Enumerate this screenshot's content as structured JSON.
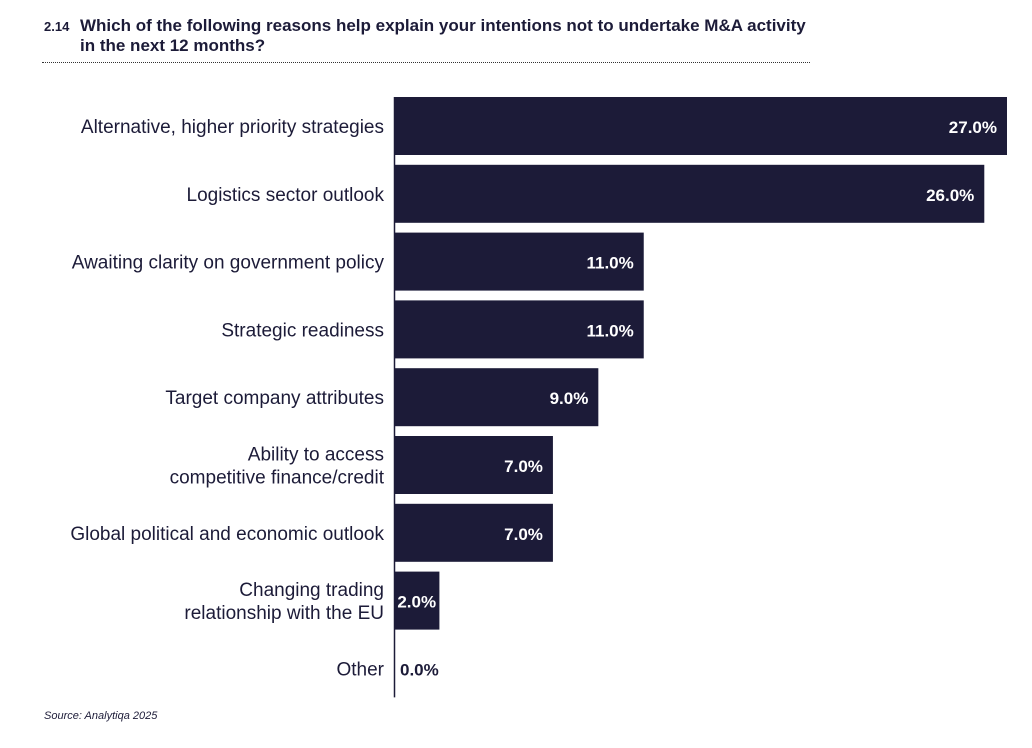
{
  "title": {
    "number": "2.14",
    "text": "Which of the following reasons help explain your intentions not to undertake M&A activity in the next 12 months?"
  },
  "source": "Source: Analytiqa 2025",
  "colors": {
    "bar": "#1c1b38",
    "bar_label": "#ffffff",
    "text": "#1c1b38"
  },
  "chart_data": {
    "type": "bar",
    "orientation": "horizontal",
    "categories": [
      [
        "Alternative, higher priority strategies"
      ],
      [
        "Logistics sector outlook"
      ],
      [
        "Awaiting clarity on government policy"
      ],
      [
        "Strategic readiness"
      ],
      [
        "Target company attributes"
      ],
      [
        "Ability to access",
        "competitive finance/credit"
      ],
      [
        "Global political and economic outlook"
      ],
      [
        "Changing trading",
        "relationship with the EU"
      ],
      [
        "Other"
      ]
    ],
    "values": [
      27.0,
      26.0,
      11.0,
      11.0,
      9.0,
      7.0,
      7.0,
      2.0,
      0.0
    ],
    "data_labels": [
      "27.0%",
      "26.0%",
      "11.0%",
      "11.0%",
      "9.0%",
      "7.0%",
      "7.0%",
      "2.0%",
      "0.0%"
    ],
    "xlim": [
      0,
      27
    ],
    "grid": false,
    "legend": "none"
  }
}
